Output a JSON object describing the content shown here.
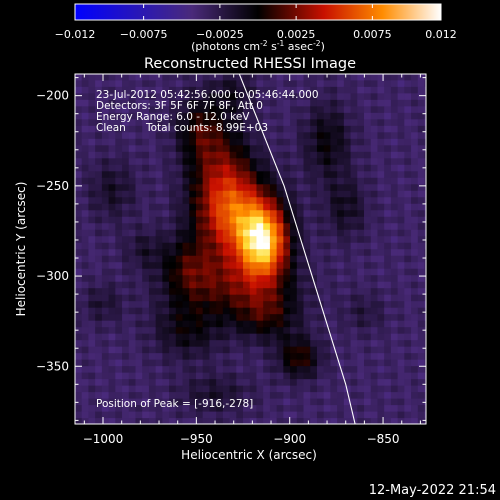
{
  "chart_data": {
    "type": "heatmap",
    "title": "Reconstructed RHESSI Image",
    "colorbar": {
      "ticks": [
        "-0.012",
        "-0.0075",
        "-0.0025",
        "0.0025",
        "0.0075",
        "0.012"
      ],
      "range": [
        -0.012,
        0.012
      ],
      "unit_label": "(photons cm",
      "unit_sup1": "-2",
      "unit_mid": " s",
      "unit_sup2": "-1",
      "unit_tail": " asec",
      "unit_sup3": "-2",
      "unit_close": ")",
      "colors": {
        "blue": "#0000ff",
        "dark_violet": "#4a2a7a",
        "black": "#000000",
        "red": "#c81000",
        "orange": "#ff8c00",
        "white": "#ffffff"
      }
    },
    "xlabel": "Heliocentric X (arcsec)",
    "ylabel": "Heliocentric Y (arcsec)",
    "xlim": [
      -1015,
      -827
    ],
    "ylim": [
      -382,
      -188
    ],
    "xticks": [
      {
        "value": -1000,
        "label": "−1000"
      },
      {
        "value": -950,
        "label": "−950"
      },
      {
        "value": -900,
        "label": "−900"
      },
      {
        "value": -850,
        "label": "−850"
      }
    ],
    "yticks": [
      {
        "value": -200,
        "label": "−200"
      },
      {
        "value": -250,
        "label": "−250"
      },
      {
        "value": -300,
        "label": "−300"
      },
      {
        "value": -350,
        "label": "−350"
      }
    ],
    "annotations": {
      "time_range": "23-Jul-2012 05:42:56.000 to 05:46:44.000",
      "detectors": "Detectors: 3F 5F 6F 7F 8F, Att 0",
      "energy": "Energy Range: 6.0 - 12.0 keV",
      "clean": "Clean",
      "total_counts": "Total counts: 8.99E+03",
      "peak": "Position of Peak = [-916,-278]"
    },
    "peak": {
      "x": -916,
      "y": -278
    },
    "emission_sources": [
      {
        "x": -914,
        "y": -281,
        "sx": 9,
        "sy": 14,
        "amp": 0.0115
      },
      {
        "x": -928,
        "y": -268,
        "sx": 15,
        "sy": 17,
        "amp": 0.0075
      },
      {
        "x": -936,
        "y": -245,
        "sx": 12,
        "sy": 20,
        "amp": 0.0052
      },
      {
        "x": -948,
        "y": -218,
        "sx": 9,
        "sy": 13,
        "amp": 0.0038
      },
      {
        "x": -930,
        "y": -305,
        "sx": 22,
        "sy": 13,
        "amp": 0.0045
      },
      {
        "x": -912,
        "y": -322,
        "sx": 12,
        "sy": 10,
        "amp": 0.0035
      },
      {
        "x": -895,
        "y": -345,
        "sx": 8,
        "sy": 8,
        "amp": 0.0045
      },
      {
        "x": -955,
        "y": -330,
        "sx": 13,
        "sy": 11,
        "amp": 0.003
      },
      {
        "x": -955,
        "y": -295,
        "sx": 10,
        "sy": 12,
        "amp": 0.0032
      },
      {
        "x": -880,
        "y": -225,
        "sx": 9,
        "sy": 15,
        "amp": 0.0032
      },
      {
        "x": -870,
        "y": -262,
        "sx": 8,
        "sy": 12,
        "amp": 0.0025
      },
      {
        "x": -995,
        "y": -252,
        "sx": 9,
        "sy": 12,
        "amp": 0.0022
      },
      {
        "x": -978,
        "y": -285,
        "sx": 8,
        "sy": 8,
        "amp": 0.0018
      },
      {
        "x": -1000,
        "y": -315,
        "sx": 8,
        "sy": 8,
        "amp": 0.0018
      },
      {
        "x": -940,
        "y": -365,
        "sx": 14,
        "sy": 8,
        "amp": 0.002
      },
      {
        "x": -860,
        "y": -320,
        "sx": 8,
        "sy": 8,
        "amp": 0.0015
      },
      {
        "x": -930,
        "y": -198,
        "sx": 8,
        "sy": 8,
        "amp": 0.0022
      }
    ],
    "limb": [
      {
        "x": -927,
        "y": -188
      },
      {
        "x": -903,
        "y": -250
      },
      {
        "x": -888,
        "y": -300
      },
      {
        "x": -870,
        "y": -360
      },
      {
        "x": -865,
        "y": -382
      }
    ],
    "grid": false
  },
  "footer": {
    "timestamp": "12-May-2022 21:54"
  }
}
